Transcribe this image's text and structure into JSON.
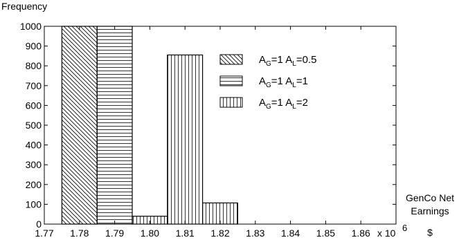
{
  "chart_data": {
    "type": "bar",
    "title": "",
    "ylabel": "Frequency",
    "xlabel_lines": [
      "GenCo Net",
      "Earnings",
      "$"
    ],
    "x_multiplier": {
      "base": "x 10",
      "exponent": "6"
    },
    "xlim": [
      1.77,
      1.87
    ],
    "ylim": [
      0,
      1000
    ],
    "xticks": [
      1.77,
      1.78,
      1.79,
      1.8,
      1.81,
      1.82,
      1.83,
      1.84,
      1.85,
      1.86
    ],
    "xtick_labels": [
      "1.77",
      "1.78",
      "1.79",
      "1.80",
      "1.81",
      "1.82",
      "1.83",
      "1.84",
      "1.85",
      "1.86"
    ],
    "yticks": [
      0,
      100,
      200,
      300,
      400,
      500,
      600,
      700,
      800,
      900,
      1000
    ],
    "ytick_labels": [
      "0",
      "100",
      "200",
      "300",
      "400",
      "500",
      "600",
      "700",
      "800",
      "900",
      "1000"
    ],
    "grid": false,
    "legend_position": "upper-center-right",
    "series": [
      {
        "legend": {
          "a": "A",
          "a_sub": "G",
          "a_val": "=1 A",
          "b_sub": "L",
          "b_val": "=0.5"
        },
        "pattern": "diagonal",
        "bars": [
          {
            "x0": 1.775,
            "x1": 1.785,
            "value": 1000
          }
        ]
      },
      {
        "legend": {
          "a": "A",
          "a_sub": "G",
          "a_val": "=1 A",
          "b_sub": "L",
          "b_val": "=1"
        },
        "pattern": "horizontal",
        "bars": [
          {
            "x0": 1.785,
            "x1": 1.795,
            "value": 1000
          }
        ]
      },
      {
        "legend": {
          "a": "A",
          "a_sub": "G",
          "a_val": "=1 A",
          "b_sub": "L",
          "b_val": "=2"
        },
        "pattern": "vertical",
        "bars": [
          {
            "x0": 1.795,
            "x1": 1.805,
            "value": 40
          },
          {
            "x0": 1.805,
            "x1": 1.815,
            "value": 855
          },
          {
            "x0": 1.815,
            "x1": 1.825,
            "value": 107
          }
        ]
      }
    ]
  }
}
